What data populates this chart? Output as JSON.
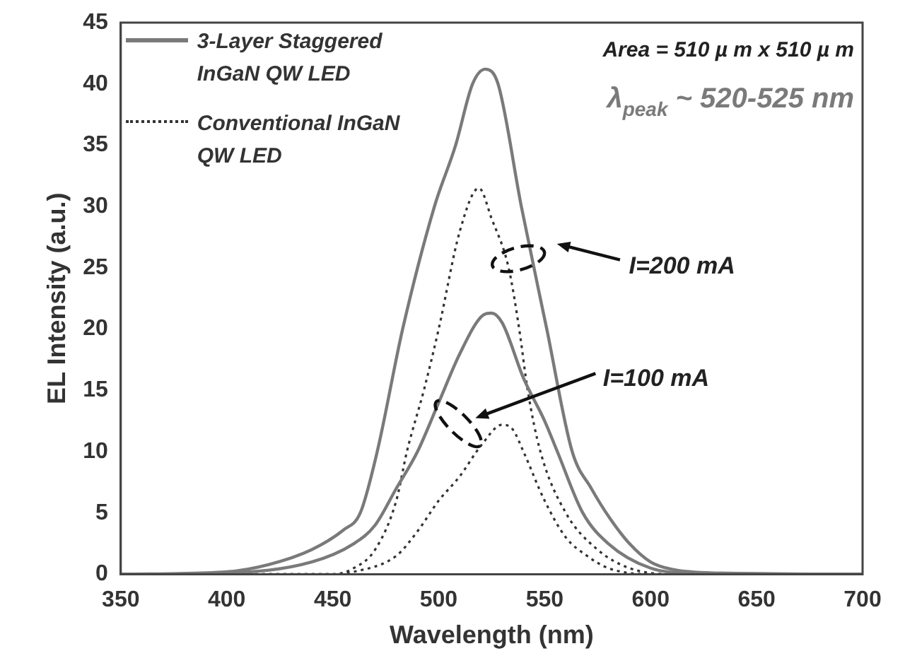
{
  "chart_data": {
    "type": "line",
    "xlabel": "Wavelength (nm)",
    "ylabel": "EL Intensity (a.u.)",
    "xlim": [
      350,
      700
    ],
    "xticks": [
      350,
      400,
      450,
      500,
      550,
      600,
      650,
      700
    ],
    "ylim": [
      0,
      45
    ],
    "yticks": [
      0,
      5,
      10,
      15,
      20,
      25,
      30,
      35,
      40,
      45
    ],
    "grid": false,
    "legend": "top left",
    "marker": "none",
    "series": [
      {
        "name": "3-Layer Staggered InGaN QW LED",
        "color": "#7a7a7a",
        "line_style": "solid",
        "x": [
          350,
          400,
          420,
          440,
          455,
          463,
          471,
          483,
          498,
          508,
          516,
          522,
          528,
          539,
          551,
          563,
          572,
          581,
          590,
          600,
          610,
          630,
          700
        ],
        "values": [
          0,
          0.2,
          0.8,
          2,
          3.6,
          5,
          10,
          20,
          30,
          35,
          40,
          41.2,
          40,
          30,
          20,
          10,
          7,
          4.5,
          2.5,
          1,
          0.4,
          0.1,
          0
        ]
      },
      {
        "color": "#7a7a7a",
        "line_style": "solid",
        "x": [
          350,
          400,
          440,
          460,
          470,
          480,
          490,
          500,
          510,
          520,
          525,
          530,
          540,
          550,
          556,
          568,
          580,
          600,
          620,
          700
        ],
        "values": [
          0,
          0.1,
          1,
          2.5,
          4,
          7,
          10,
          14,
          18,
          21,
          21.3,
          20.5,
          16,
          12.5,
          10,
          5,
          2.5,
          0.5,
          0.1,
          0
        ]
      },
      {
        "name": "Conventional InGaN QW LED",
        "color": "#333333",
        "line_style": "dotted",
        "x": [
          350,
          450,
          460,
          470,
          480,
          485,
          493,
          500,
          510,
          519,
          525,
          533,
          538,
          542,
          548,
          560,
          575,
          590,
          610,
          700
        ],
        "values": [
          0,
          0,
          0.5,
          2,
          6,
          10,
          15,
          20,
          28,
          31.5,
          29,
          25,
          20,
          15,
          10,
          5,
          2,
          0.5,
          0,
          0
        ]
      },
      {
        "color": "#333333",
        "line_style": "dotted",
        "x": [
          350,
          450,
          460,
          480,
          490,
          500,
          510,
          520,
          530,
          535,
          540,
          550,
          560,
          570,
          580,
          600,
          700
        ],
        "values": [
          0,
          0,
          0.2,
          1.5,
          3.5,
          6,
          8,
          10.5,
          12.2,
          11.8,
          10,
          6,
          3,
          1.5,
          0.5,
          0,
          0
        ]
      }
    ],
    "annotations": [
      "Area = 510 µ m x 510 µ m",
      "λ$_{peak}$ ~ 520-525 nm",
      "I=200 mA",
      "I=100 mA"
    ]
  }
}
